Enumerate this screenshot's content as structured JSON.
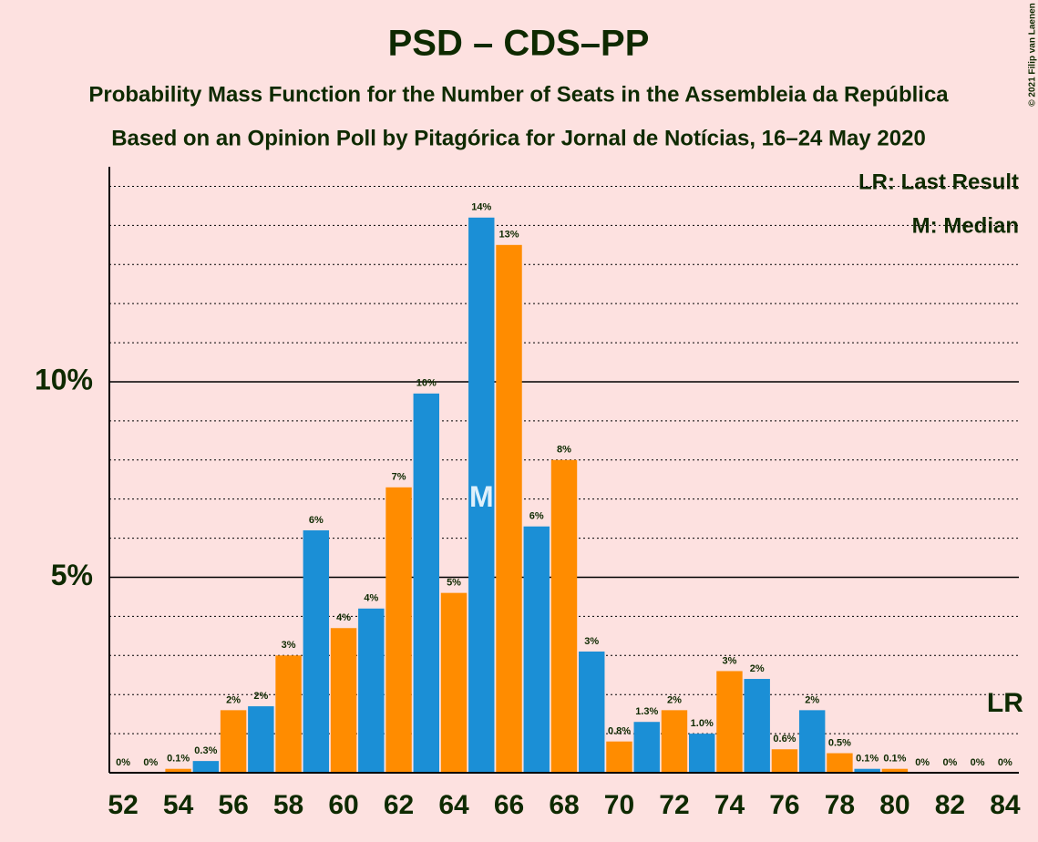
{
  "chart_data": {
    "type": "bar",
    "title": "PSD – CDS–PP",
    "subtitle": "Probability Mass Function for the Number of Seats in the Assembleia da República",
    "subtitle2": "Based on an Opinion Poll by Pitagórica for Jornal de Notícias, 16–24 May 2020",
    "copyright": "© 2021 Filip van Laenen",
    "legend": [
      "LR: Last Result",
      "M: Median"
    ],
    "median": {
      "x": 65,
      "label": "M"
    },
    "last_result": {
      "x": 84,
      "label": "LR"
    },
    "x": [
      52,
      53,
      54,
      55,
      56,
      57,
      58,
      59,
      60,
      61,
      62,
      63,
      64,
      65,
      66,
      67,
      68,
      69,
      70,
      71,
      72,
      73,
      74,
      75,
      76,
      77,
      78,
      79,
      80,
      81,
      82,
      83,
      84
    ],
    "values": [
      0,
      0,
      0.1,
      0.3,
      1.6,
      1.7,
      3.0,
      6.2,
      3.7,
      4.2,
      7.3,
      9.7,
      4.6,
      14.2,
      13.5,
      6.3,
      8.0,
      3.1,
      0.8,
      1.3,
      1.6,
      1.0,
      2.6,
      2.4,
      0.6,
      1.6,
      0.5,
      0.1,
      0.1,
      0,
      0,
      0,
      0
    ],
    "value_labels": [
      "0%",
      "0%",
      "0.1%",
      "0.3%",
      "2%",
      "2%",
      "3%",
      "6%",
      "4%",
      "4%",
      "7%",
      "10%",
      "5%",
      "14%",
      "13%",
      "6%",
      "8%",
      "3%",
      "0.8%",
      "1.3%",
      "2%",
      "1.0%",
      "3%",
      "2%",
      "0.6%",
      "2%",
      "0.5%",
      "0.1%",
      "0.1%",
      "0%",
      "0%",
      "0%",
      "0%"
    ],
    "colors": [
      "#ff8c00",
      "#1b8fd6"
    ],
    "xlim": [
      51.5,
      84.5
    ],
    "xticks": [
      52,
      54,
      56,
      58,
      60,
      62,
      64,
      66,
      68,
      70,
      72,
      74,
      76,
      78,
      80,
      82,
      84
    ],
    "ylim": [
      0,
      15.5
    ],
    "yticks": [
      {
        "value": 5,
        "label": "5%"
      },
      {
        "value": 10,
        "label": "10%"
      }
    ],
    "minor_yticks": [
      1,
      2,
      3,
      4,
      6,
      7,
      8,
      9,
      11,
      12,
      13,
      14,
      15
    ],
    "grid": true
  }
}
